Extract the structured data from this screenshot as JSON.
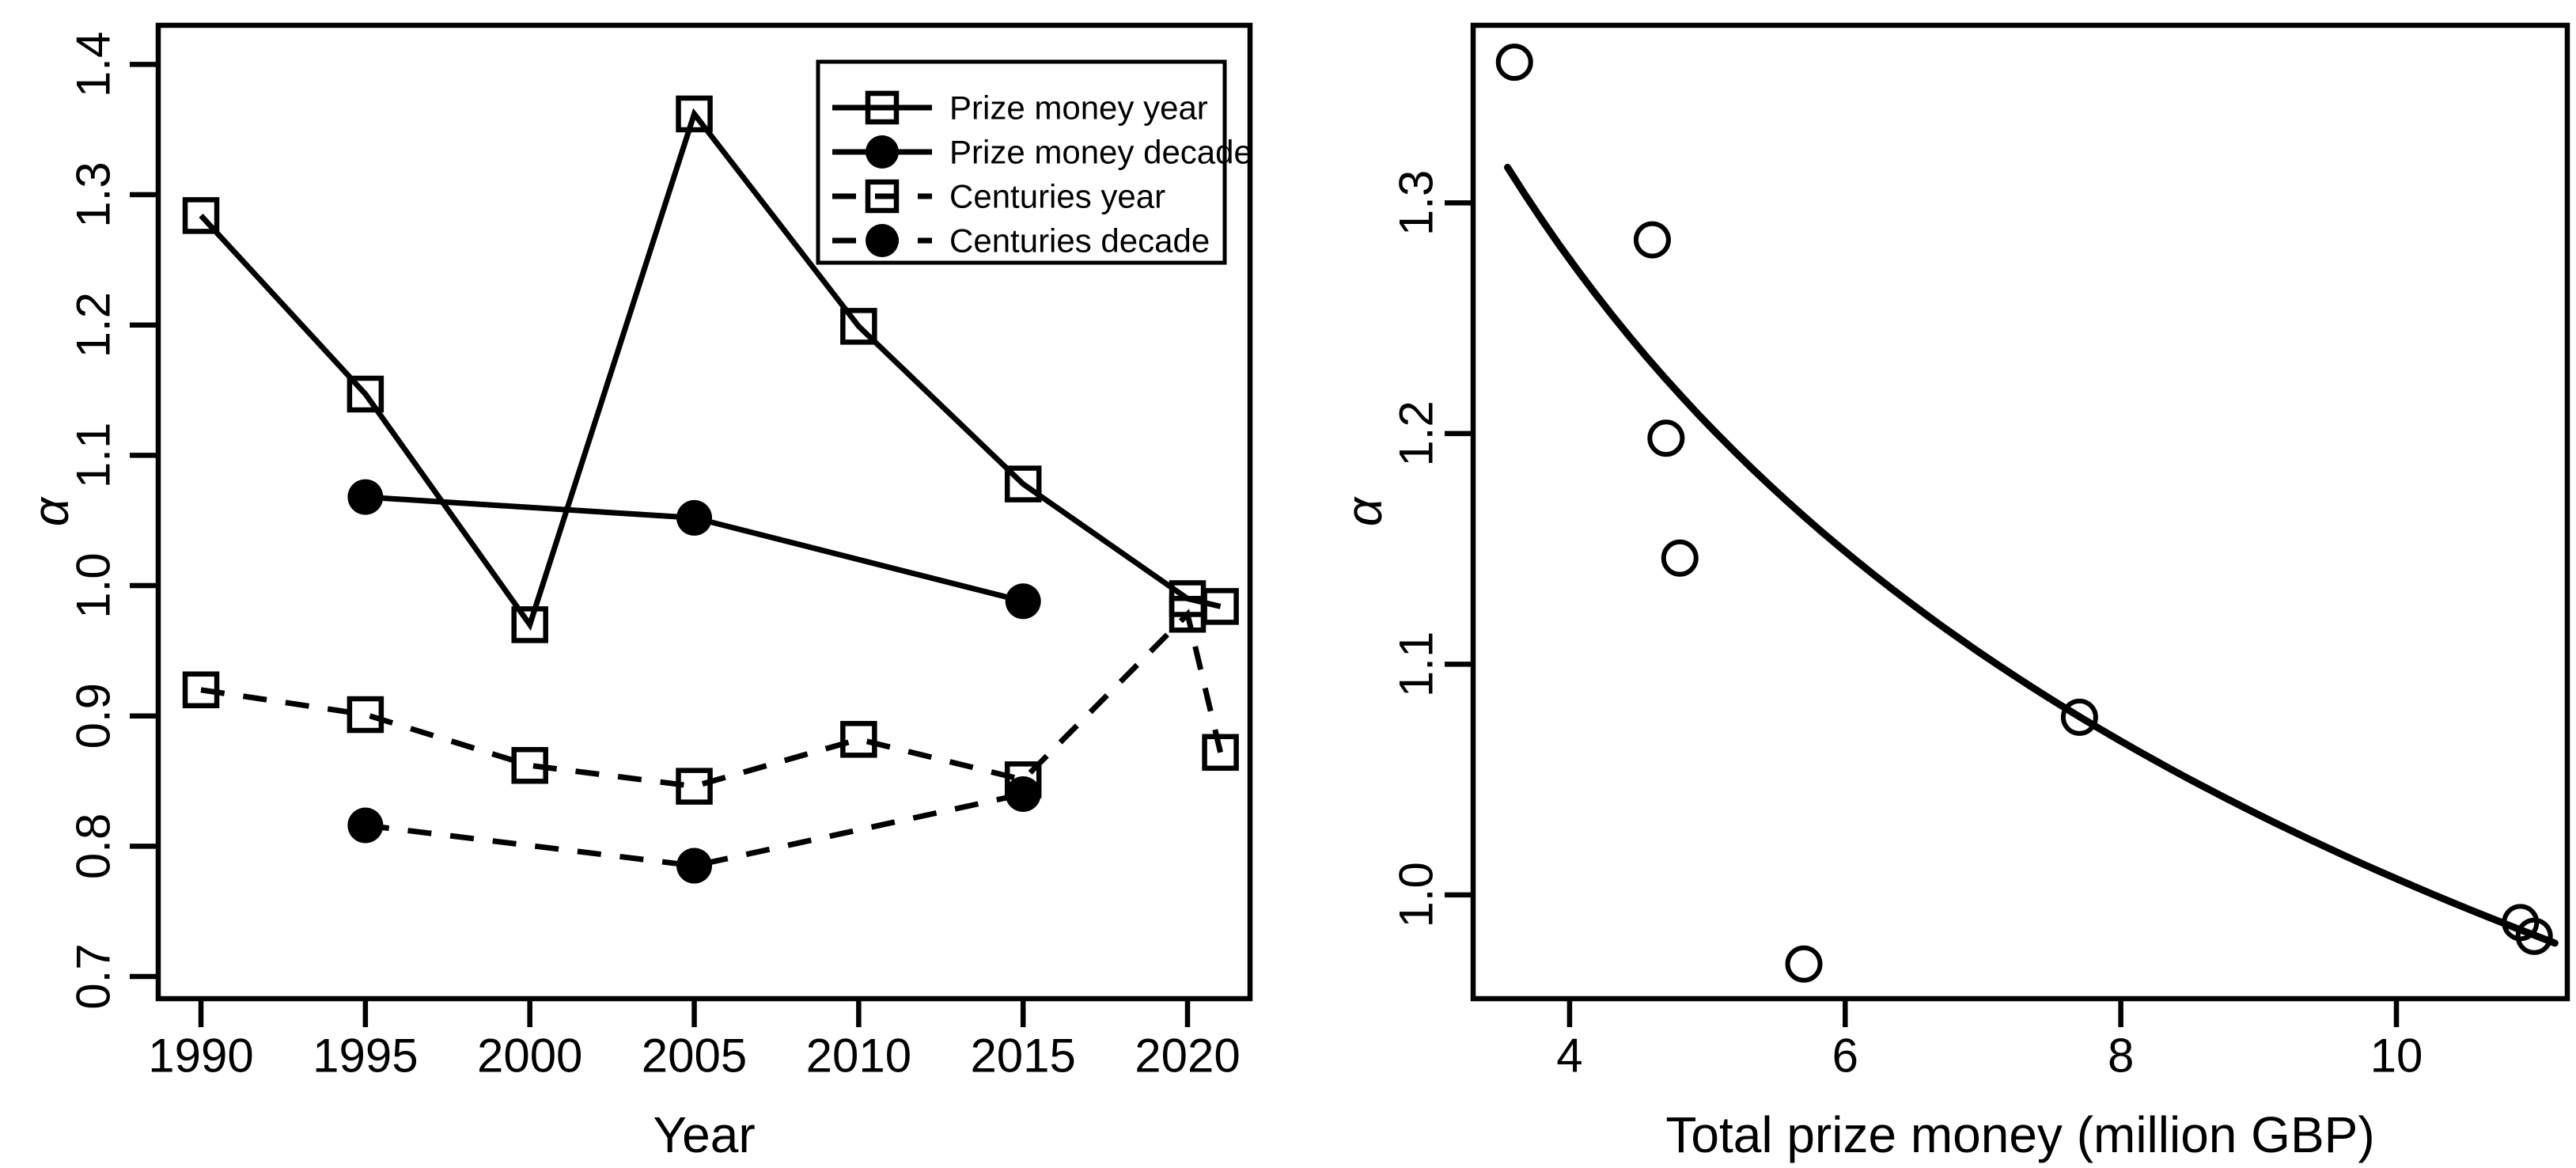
{
  "figure": {
    "background": "#ffffff",
    "foreground": "#000000"
  },
  "chart_data": [
    {
      "type": "line",
      "panel": "left",
      "title": "",
      "xlabel": "Year",
      "ylabel": "α",
      "xlim": [
        1988.7,
        2021.9
      ],
      "ylim": [
        0.683,
        1.43
      ],
      "xticks": [
        1990,
        1995,
        2000,
        2005,
        2010,
        2015,
        2020
      ],
      "yticks": [
        0.7,
        0.8,
        0.9,
        1.0,
        1.1,
        1.2,
        1.3,
        1.4
      ],
      "grid": false,
      "series": [
        {
          "name": "Prize money year",
          "line": "solid",
          "marker": "open-square",
          "x": [
            1990,
            1995,
            2000,
            2005,
            2010,
            2015,
            2020,
            2021
          ],
          "y": [
            1.284,
            1.147,
            0.97,
            1.362,
            1.199,
            1.078,
            0.99,
            0.984
          ]
        },
        {
          "name": "Prize money decade",
          "line": "solid",
          "marker": "filled-circle",
          "x": [
            1995,
            2005,
            2015
          ],
          "y": [
            1.068,
            1.052,
            0.988
          ]
        },
        {
          "name": "Centuries year",
          "line": "dashed",
          "marker": "open-square",
          "x": [
            1990,
            1995,
            2000,
            2005,
            2010,
            2015,
            2020,
            2021
          ],
          "y": [
            0.92,
            0.901,
            0.862,
            0.846,
            0.882,
            0.851,
            0.978,
            0.872
          ]
        },
        {
          "name": "Centuries decade",
          "line": "dashed",
          "marker": "filled-circle",
          "x": [
            1995,
            2005,
            2015
          ],
          "y": [
            0.816,
            0.785,
            0.84
          ]
        }
      ],
      "legend": {
        "position": "top-right",
        "entries": [
          {
            "label": "Prize money year",
            "line": "solid",
            "marker": "open-square"
          },
          {
            "label": "Prize money decade",
            "line": "solid",
            "marker": "filled-circle"
          },
          {
            "label": "Centuries year",
            "line": "dashed",
            "marker": "open-square"
          },
          {
            "label": "Centuries decade",
            "line": "dashed",
            "marker": "filled-circle"
          }
        ]
      }
    },
    {
      "type": "scatter",
      "panel": "right",
      "title": "",
      "xlabel": "Total prize money (million GBP)",
      "ylabel": "α",
      "xlim": [
        3.3,
        11.24
      ],
      "ylim": [
        0.955,
        1.377
      ],
      "xticks": [
        4,
        6,
        8,
        10
      ],
      "yticks": [
        1.0,
        1.1,
        1.2,
        1.3
      ],
      "grid": false,
      "points": {
        "marker": "open-circle",
        "x": [
          3.6,
          4.6,
          4.7,
          4.8,
          5.7,
          7.7,
          10.9,
          11.0
        ],
        "y": [
          1.361,
          1.284,
          1.198,
          1.146,
          0.97,
          1.077,
          0.988,
          0.982
        ]
      },
      "fit_curve": {
        "type": "power",
        "equation": "alpha = a * x^(-b)",
        "a": 1.824,
        "b": 0.258,
        "x_range": [
          3.55,
          11.15
        ]
      }
    }
  ]
}
